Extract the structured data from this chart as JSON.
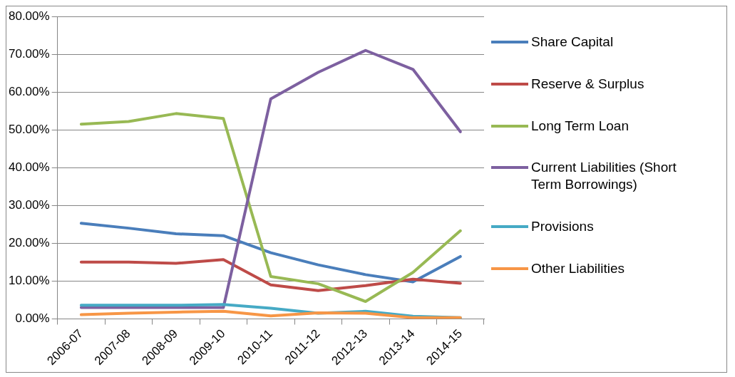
{
  "chart_data": {
    "type": "line",
    "categories": [
      "2006-07",
      "2007-08",
      "2008-09",
      "2009-10",
      "2010-11",
      "2011-12",
      "2012-13",
      "2013-14",
      "2014-15"
    ],
    "ylim": [
      0,
      80
    ],
    "yticks": [
      {
        "value": 0,
        "label": "0.00%"
      },
      {
        "value": 10,
        "label": "10.00%"
      },
      {
        "value": 20,
        "label": "20.00%"
      },
      {
        "value": 30,
        "label": "30.00%"
      },
      {
        "value": 40,
        "label": "40.00%"
      },
      {
        "value": 50,
        "label": "50.00%"
      },
      {
        "value": 60,
        "label": "60.00%"
      },
      {
        "value": 70,
        "label": "70.00%"
      },
      {
        "value": 80,
        "label": "80.00%"
      }
    ],
    "grid": "y",
    "legend": "right",
    "marker": "none",
    "line_style": "solid",
    "series": [
      {
        "name": "Share Capital",
        "color": "#4a7ebb",
        "values": [
          25.3,
          24,
          22.5,
          22,
          17.5,
          14.3,
          11.7,
          9.8,
          16.5
        ]
      },
      {
        "name": "Reserve & Surplus",
        "color": "#be4b48",
        "values": [
          15,
          15,
          14.7,
          15.7,
          9,
          7.5,
          8.8,
          10.5,
          9.4
        ]
      },
      {
        "name": "Long Term Loan",
        "color": "#98b954",
        "values": [
          51.5,
          52.2,
          54.3,
          53,
          11.2,
          9.3,
          4.6,
          12.3,
          23.3
        ]
      },
      {
        "name": "Current Liabilities (Short Term Borrowings)",
        "color": "#7d60a0",
        "values": [
          3,
          3,
          3,
          3,
          58.2,
          65.2,
          71,
          66,
          49.5
        ]
      },
      {
        "name": "Provisions",
        "color": "#46aac5",
        "values": [
          3.6,
          3.6,
          3.6,
          3.8,
          2.8,
          1.5,
          2,
          0.7,
          0.3
        ]
      },
      {
        "name": "Other Liabilities",
        "color": "#f79646",
        "values": [
          1.1,
          1.5,
          1.8,
          2,
          0.8,
          1.6,
          1.5,
          0.3,
          0.3
        ]
      }
    ]
  }
}
